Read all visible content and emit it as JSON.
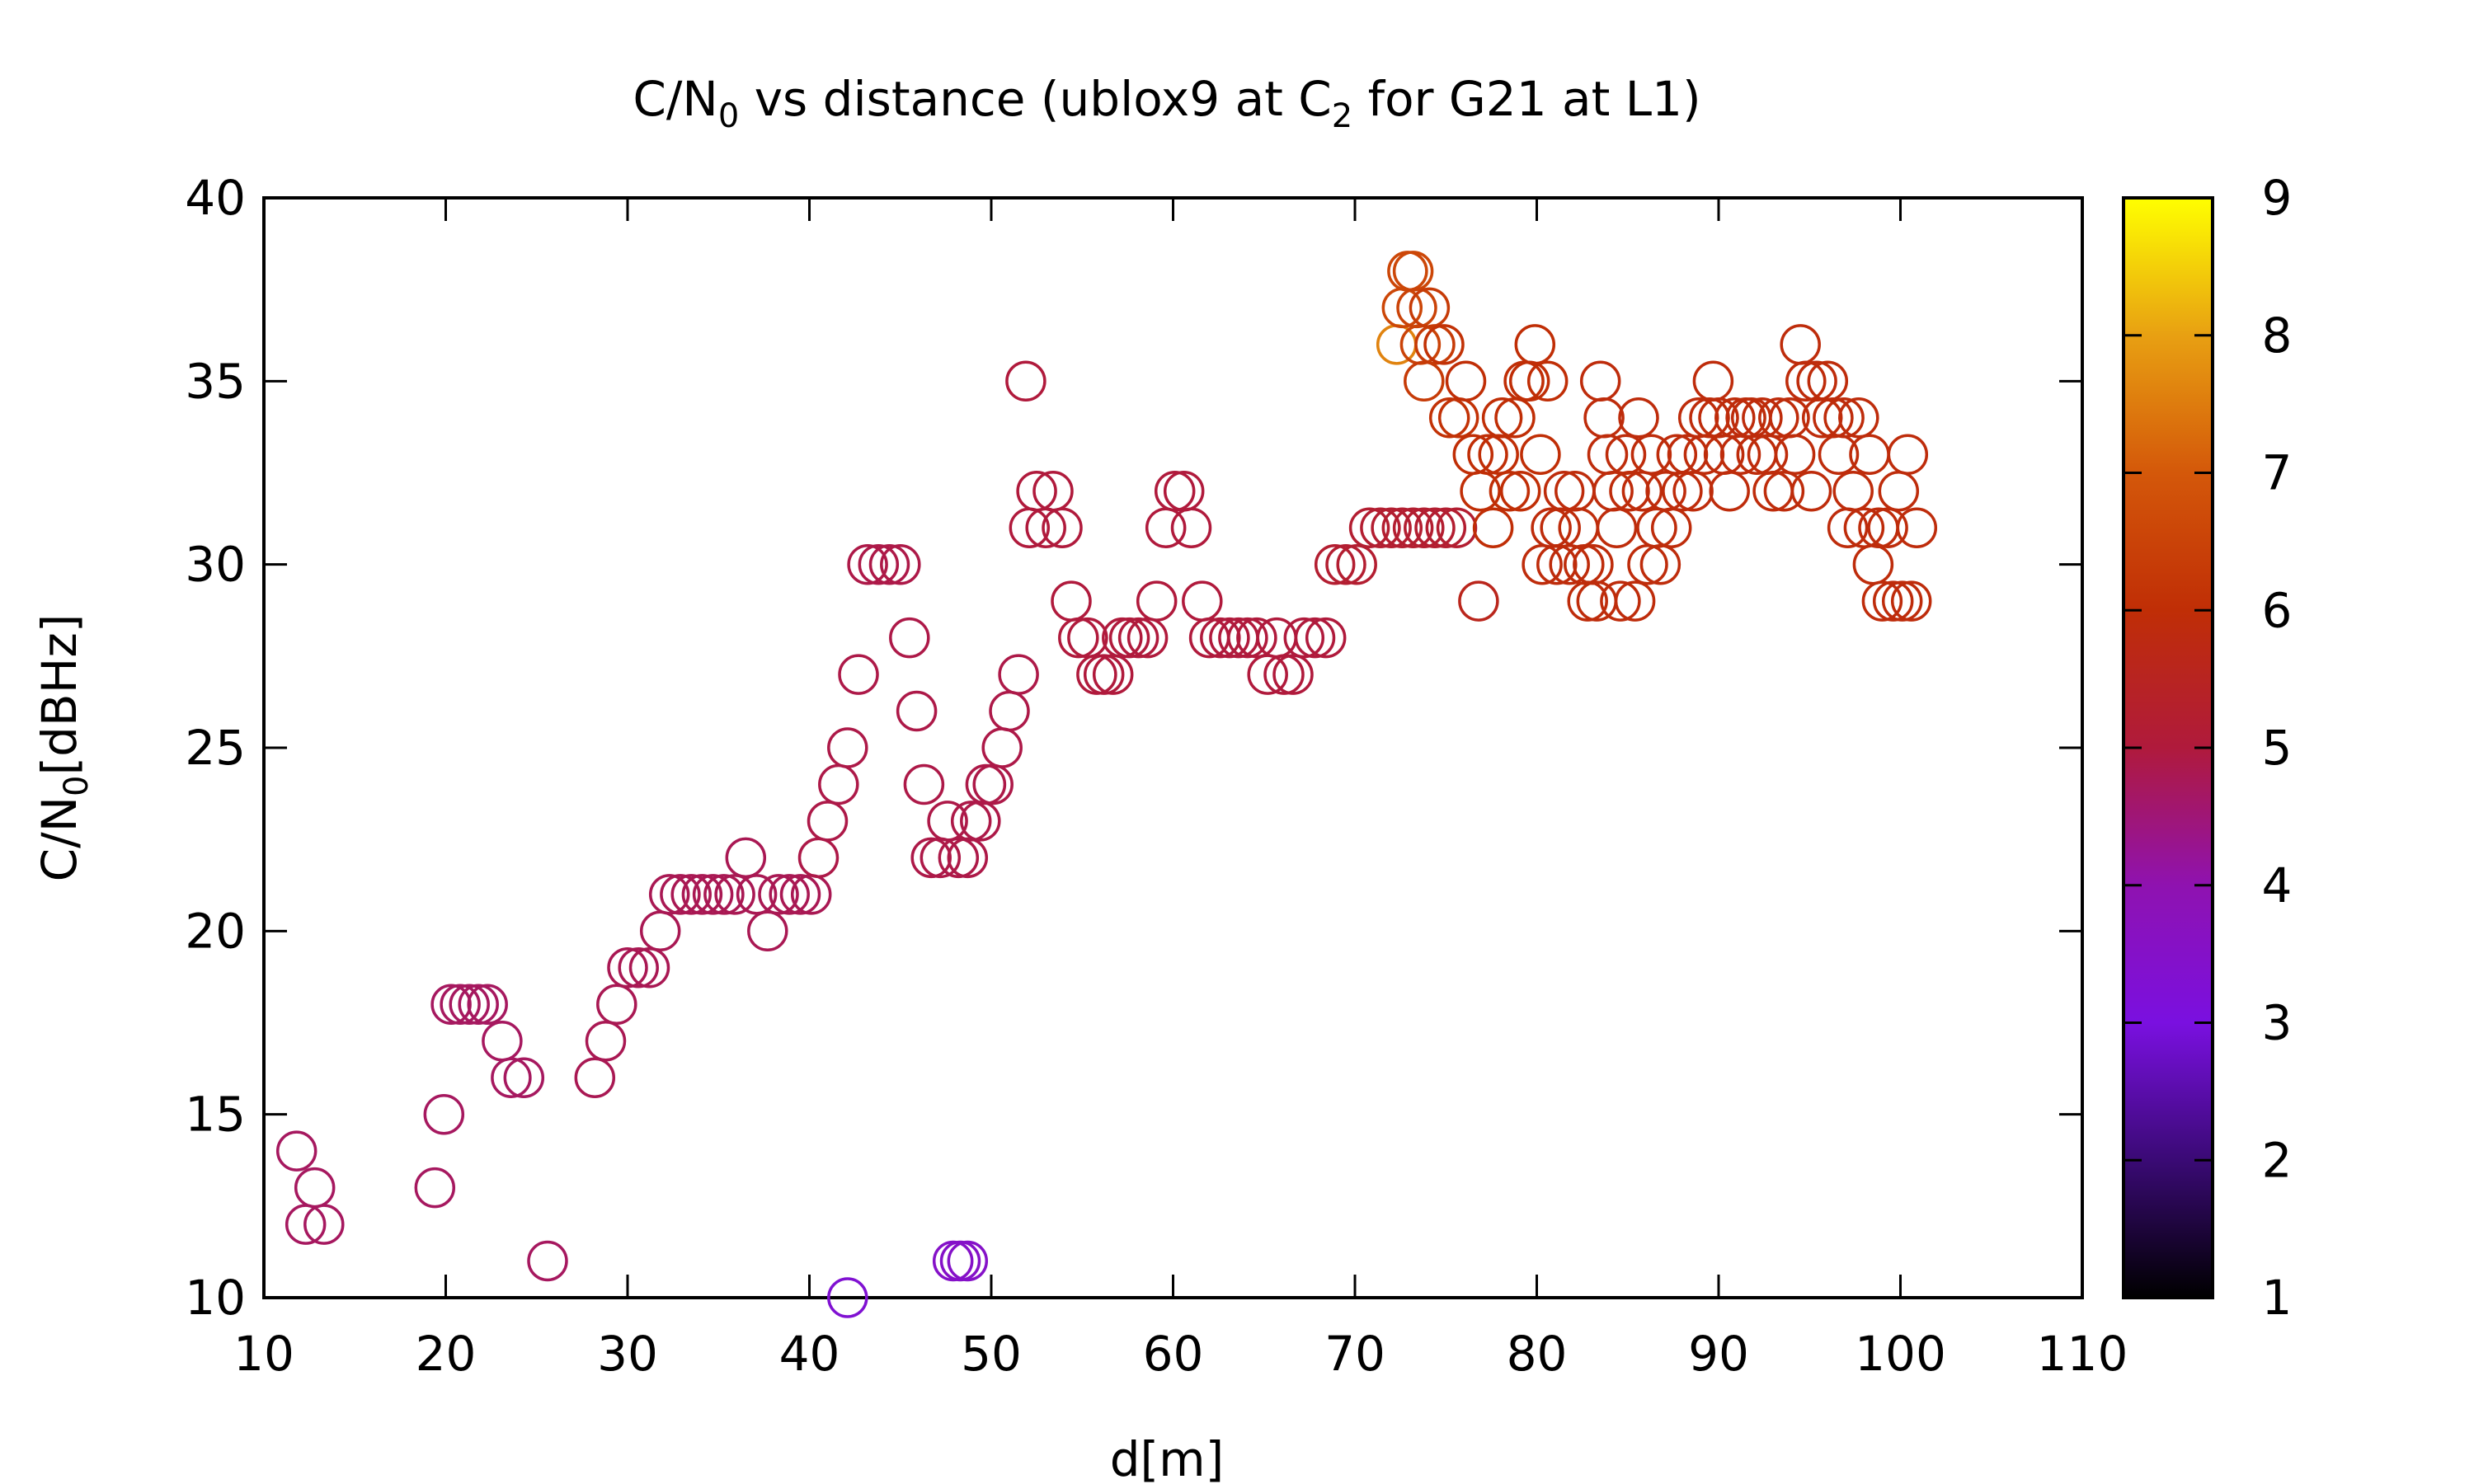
{
  "chart_data": {
    "type": "scatter",
    "title": {
      "prefix": "C/N",
      "sub1": "0",
      "middle": " vs distance (ublox9 at C",
      "sub2": "2",
      "suffix": " for G21 at L1)"
    },
    "xlabel": "d[m]",
    "ylabel": {
      "prefix": "C/N",
      "sub": "0",
      "suffix": "[dBHz]"
    },
    "xlim": [
      10,
      110
    ],
    "ylim": [
      10,
      40
    ],
    "x_ticks": [
      "10",
      "20",
      "30",
      "40",
      "50",
      "60",
      "70",
      "80",
      "90",
      "100",
      "110"
    ],
    "y_ticks": [
      "10",
      "15",
      "20",
      "25",
      "30",
      "35",
      "40"
    ],
    "colorbar": {
      "min": 1,
      "max": 9,
      "ticks": [
        "1",
        "2",
        "3",
        "4",
        "5",
        "6",
        "7",
        "8",
        "9"
      ],
      "palette": [
        "#000000",
        "#3a0a75",
        "#7a10e0",
        "#8f12b0",
        "#b01a3c",
        "#c02e06",
        "#d4580a",
        "#e8a012",
        "#ffff00"
      ]
    },
    "grid": false,
    "marker": "open-circle",
    "points": [
      [
        11.8,
        14,
        4.7
      ],
      [
        12.3,
        12,
        4.7
      ],
      [
        12.8,
        13,
        4.7
      ],
      [
        13.3,
        12,
        4.7
      ],
      [
        19.4,
        13,
        4.7
      ],
      [
        19.9,
        15,
        4.7
      ],
      [
        20.3,
        18,
        4.7
      ],
      [
        20.8,
        18,
        4.7
      ],
      [
        21.3,
        18,
        4.7
      ],
      [
        21.8,
        18,
        4.7
      ],
      [
        22.3,
        18,
        4.7
      ],
      [
        23.1,
        17,
        4.7
      ],
      [
        23.6,
        16,
        4.7
      ],
      [
        24.3,
        16,
        4.7
      ],
      [
        25.6,
        11,
        4.7
      ],
      [
        28.2,
        16,
        4.8
      ],
      [
        28.8,
        17,
        4.8
      ],
      [
        29.4,
        18,
        4.8
      ],
      [
        30.0,
        19,
        4.8
      ],
      [
        30.6,
        19,
        4.8
      ],
      [
        31.2,
        19,
        4.8
      ],
      [
        31.8,
        20,
        4.8
      ],
      [
        32.3,
        21,
        4.8
      ],
      [
        32.9,
        21,
        4.8
      ],
      [
        33.5,
        21,
        4.8
      ],
      [
        34.1,
        21,
        4.8
      ],
      [
        34.7,
        21,
        4.8
      ],
      [
        35.3,
        21,
        4.8
      ],
      [
        35.9,
        21,
        4.8
      ],
      [
        36.5,
        22,
        4.8
      ],
      [
        37.1,
        21,
        4.8
      ],
      [
        37.7,
        20,
        4.8
      ],
      [
        38.3,
        21,
        4.8
      ],
      [
        38.9,
        21,
        4.8
      ],
      [
        39.5,
        21,
        4.8
      ],
      [
        40.1,
        21,
        4.8
      ],
      [
        40.5,
        22,
        4.9
      ],
      [
        41.0,
        23,
        4.9
      ],
      [
        41.6,
        24,
        4.9
      ],
      [
        42.1,
        25,
        4.9
      ],
      [
        42.1,
        10,
        3.3
      ],
      [
        42.7,
        27,
        4.9
      ],
      [
        43.2,
        30,
        4.9
      ],
      [
        43.8,
        30,
        4.9
      ],
      [
        44.4,
        30,
        4.9
      ],
      [
        45.0,
        30,
        4.9
      ],
      [
        45.5,
        28,
        4.9
      ],
      [
        45.9,
        26,
        4.9
      ],
      [
        46.3,
        24,
        4.9
      ],
      [
        46.7,
        22,
        4.9
      ],
      [
        47.2,
        22,
        4.9
      ],
      [
        47.6,
        23,
        4.9
      ],
      [
        47.9,
        11,
        3.5
      ],
      [
        48.2,
        22,
        4.9
      ],
      [
        48.3,
        11,
        3.5
      ],
      [
        48.7,
        11,
        3.5
      ],
      [
        48.7,
        22,
        4.9
      ],
      [
        48.9,
        23,
        4.9
      ],
      [
        49.4,
        23,
        4.9
      ],
      [
        49.7,
        24,
        4.9
      ],
      [
        50.1,
        24,
        4.9
      ],
      [
        50.6,
        25,
        4.9
      ],
      [
        51.0,
        26,
        4.9
      ],
      [
        51.5,
        27,
        4.9
      ],
      [
        51.9,
        35,
        5.0
      ],
      [
        52.1,
        31,
        5.0
      ],
      [
        52.5,
        32,
        5.0
      ],
      [
        53.0,
        31,
        5.0
      ],
      [
        53.4,
        32,
        5.0
      ],
      [
        53.9,
        31,
        5.0
      ],
      [
        54.4,
        29,
        5.0
      ],
      [
        54.8,
        28,
        5.0
      ],
      [
        55.3,
        28,
        5.0
      ],
      [
        55.8,
        27,
        5.0
      ],
      [
        56.2,
        27,
        5.0
      ],
      [
        56.7,
        27,
        5.0
      ],
      [
        57.2,
        28,
        5.0
      ],
      [
        57.6,
        28,
        5.0
      ],
      [
        58.1,
        28,
        5.0
      ],
      [
        58.6,
        28,
        5.0
      ],
      [
        59.1,
        29,
        5.0
      ],
      [
        59.6,
        31,
        5.0
      ],
      [
        60.1,
        32,
        5.0
      ],
      [
        60.6,
        32,
        5.0
      ],
      [
        61.0,
        31,
        5.0
      ],
      [
        61.6,
        29,
        5.0
      ],
      [
        62.0,
        28,
        5.0
      ],
      [
        62.6,
        28,
        5.0
      ],
      [
        63.1,
        28,
        5.0
      ],
      [
        63.6,
        28,
        5.0
      ],
      [
        64.1,
        28,
        5.0
      ],
      [
        64.6,
        28,
        5.0
      ],
      [
        65.2,
        27,
        5.0
      ],
      [
        65.7,
        28,
        5.0
      ],
      [
        66.1,
        27,
        5.0
      ],
      [
        66.6,
        27,
        5.0
      ],
      [
        67.2,
        28,
        5.0
      ],
      [
        67.8,
        28,
        5.0
      ],
      [
        68.4,
        28,
        5.0
      ],
      [
        68.9,
        30,
        5.2
      ],
      [
        69.5,
        30,
        5.2
      ],
      [
        70.1,
        30,
        5.2
      ],
      [
        70.8,
        31,
        5.2
      ],
      [
        71.4,
        31,
        5.2
      ],
      [
        72.0,
        31,
        5.2
      ],
      [
        72.6,
        31,
        5.2
      ],
      [
        73.2,
        31,
        5.2
      ],
      [
        73.8,
        31,
        5.2
      ],
      [
        74.4,
        31,
        5.2
      ],
      [
        75.0,
        31,
        5.2
      ],
      [
        75.6,
        31,
        5.2
      ],
      [
        72.3,
        36,
        7.6
      ],
      [
        72.6,
        37,
        6.6
      ],
      [
        72.9,
        38,
        6.6
      ],
      [
        73.2,
        38,
        6.6
      ],
      [
        73.4,
        37,
        6.5
      ],
      [
        73.6,
        36,
        6.5
      ],
      [
        73.8,
        35,
        6.3
      ],
      [
        74.1,
        37,
        6.3
      ],
      [
        74.4,
        36,
        6.3
      ],
      [
        74.9,
        36,
        6.1
      ],
      [
        75.2,
        34,
        6.1
      ],
      [
        75.7,
        34,
        6.1
      ],
      [
        76.1,
        35,
        6.0
      ],
      [
        76.5,
        33,
        6.0
      ],
      [
        76.8,
        29,
        5.6
      ],
      [
        76.9,
        32,
        6.0
      ],
      [
        77.3,
        33,
        6.0
      ],
      [
        77.6,
        31,
        6.0
      ],
      [
        77.9,
        33,
        6.0
      ],
      [
        78.1,
        34,
        6.0
      ],
      [
        78.5,
        32,
        6.0
      ],
      [
        78.8,
        34,
        6.0
      ],
      [
        79.1,
        32,
        6.0
      ],
      [
        79.3,
        35,
        6.0
      ],
      [
        79.6,
        35,
        6.0
      ],
      [
        79.9,
        36,
        6.0
      ],
      [
        80.2,
        33,
        6.0
      ],
      [
        80.3,
        30,
        5.9
      ],
      [
        80.6,
        35,
        6.0
      ],
      [
        80.8,
        31,
        5.9
      ],
      [
        81.1,
        30,
        5.9
      ],
      [
        81.3,
        31,
        5.9
      ],
      [
        81.5,
        32,
        5.9
      ],
      [
        81.8,
        30,
        5.9
      ],
      [
        82.1,
        32,
        5.9
      ],
      [
        82.3,
        31,
        5.9
      ],
      [
        82.6,
        30,
        5.9
      ],
      [
        82.8,
        29,
        5.9
      ],
      [
        83.1,
        30,
        5.9
      ],
      [
        83.3,
        29,
        5.9
      ],
      [
        83.5,
        35,
        5.9
      ],
      [
        83.7,
        34,
        5.9
      ],
      [
        83.9,
        33,
        5.9
      ],
      [
        84.2,
        32,
        5.9
      ],
      [
        84.4,
        31,
        5.9
      ],
      [
        84.6,
        29,
        5.9
      ],
      [
        84.9,
        33,
        5.9
      ],
      [
        85.1,
        32,
        5.9
      ],
      [
        85.4,
        29,
        5.9
      ],
      [
        85.6,
        34,
        5.9
      ],
      [
        85.8,
        32,
        5.9
      ],
      [
        86.1,
        30,
        5.9
      ],
      [
        86.3,
        33,
        5.9
      ],
      [
        86.6,
        31,
        5.9
      ],
      [
        86.8,
        30,
        5.9
      ],
      [
        87.1,
        32,
        5.9
      ],
      [
        87.4,
        31,
        5.9
      ],
      [
        87.7,
        33,
        5.9
      ],
      [
        88.0,
        32,
        5.9
      ],
      [
        88.3,
        33,
        5.9
      ],
      [
        88.6,
        32,
        5.9
      ],
      [
        88.9,
        34,
        5.9
      ],
      [
        89.2,
        33,
        5.9
      ],
      [
        89.5,
        34,
        5.9
      ],
      [
        89.7,
        35,
        5.9
      ],
      [
        90.0,
        34,
        5.9
      ],
      [
        90.3,
        33,
        5.9
      ],
      [
        90.6,
        32,
        5.9
      ],
      [
        90.9,
        34,
        5.9
      ],
      [
        91.2,
        33,
        5.9
      ],
      [
        91.5,
        34,
        5.9
      ],
      [
        91.8,
        34,
        5.9
      ],
      [
        92.1,
        33,
        5.9
      ],
      [
        92.4,
        34,
        5.9
      ],
      [
        92.7,
        33,
        5.9
      ],
      [
        93.0,
        32,
        5.9
      ],
      [
        93.3,
        34,
        5.9
      ],
      [
        93.6,
        32,
        5.9
      ],
      [
        93.9,
        34,
        5.9
      ],
      [
        94.2,
        33,
        5.9
      ],
      [
        94.5,
        36,
        5.9
      ],
      [
        94.8,
        35,
        5.9
      ],
      [
        95.1,
        32,
        5.9
      ],
      [
        95.4,
        35,
        5.9
      ],
      [
        95.7,
        34,
        5.9
      ],
      [
        96.0,
        35,
        5.9
      ],
      [
        96.3,
        34,
        5.9
      ],
      [
        96.6,
        33,
        5.9
      ],
      [
        96.9,
        34,
        5.9
      ],
      [
        97.1,
        31,
        5.9
      ],
      [
        97.4,
        32,
        5.9
      ],
      [
        97.7,
        34,
        5.9
      ],
      [
        98.0,
        31,
        5.9
      ],
      [
        98.3,
        33,
        5.9
      ],
      [
        98.5,
        30,
        5.9
      ],
      [
        98.8,
        31,
        5.9
      ],
      [
        99.0,
        29,
        5.9
      ],
      [
        99.3,
        31,
        5.9
      ],
      [
        99.6,
        29,
        5.9
      ],
      [
        99.9,
        32,
        5.9
      ],
      [
        100.1,
        29,
        5.9
      ],
      [
        100.4,
        33,
        5.9
      ],
      [
        100.6,
        29,
        5.9
      ],
      [
        100.9,
        31,
        5.9
      ]
    ]
  }
}
